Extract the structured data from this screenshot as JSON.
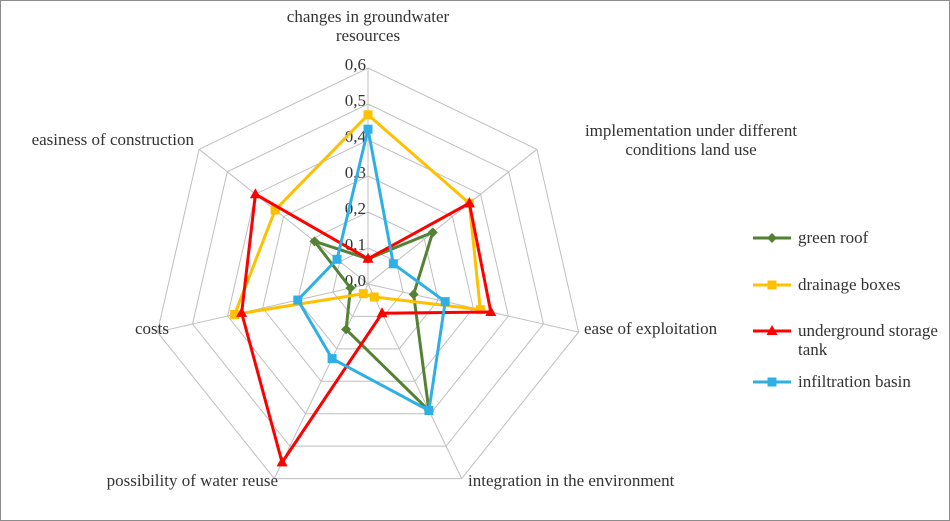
{
  "chart_data": {
    "type": "radar",
    "categories": [
      "changes in groundwater resources",
      "implementation under different conditions land use",
      "ease of exploitation",
      "integration in the environment",
      "possibility of water reuse",
      "costs",
      "easiness of construction"
    ],
    "series": [
      {
        "name": "green roof",
        "color": "#548235",
        "marker": "diamond",
        "values": [
          0.07,
          0.23,
          0.13,
          0.39,
          0.14,
          0.05,
          0.19
        ]
      },
      {
        "name": "drainage boxes",
        "color": "#ffc000",
        "marker": "square",
        "values": [
          0.47,
          0.36,
          0.32,
          0.04,
          0.03,
          0.38,
          0.33
        ]
      },
      {
        "name": "underground storage tank",
        "color": "#ff0000",
        "marker": "triangle",
        "values": [
          0.07,
          0.36,
          0.35,
          0.09,
          0.55,
          0.36,
          0.4
        ]
      },
      {
        "name": "infiltration basin",
        "color": "#2eb0e6",
        "marker": "square",
        "values": [
          0.43,
          0.09,
          0.22,
          0.39,
          0.23,
          0.2,
          0.11
        ]
      }
    ],
    "rlim": [
      0,
      0.6
    ],
    "rticks": [
      {
        "value": 0,
        "label": "0,0"
      },
      {
        "value": 0.1,
        "label": "0,1"
      },
      {
        "value": 0.2,
        "label": "0,2"
      },
      {
        "value": 0.3,
        "label": "0,3"
      },
      {
        "value": 0.4,
        "label": "0,4"
      },
      {
        "value": 0.5,
        "label": "0,5"
      },
      {
        "value": 0.6,
        "label": "0,6"
      }
    ],
    "grid": true,
    "legend": "right"
  }
}
